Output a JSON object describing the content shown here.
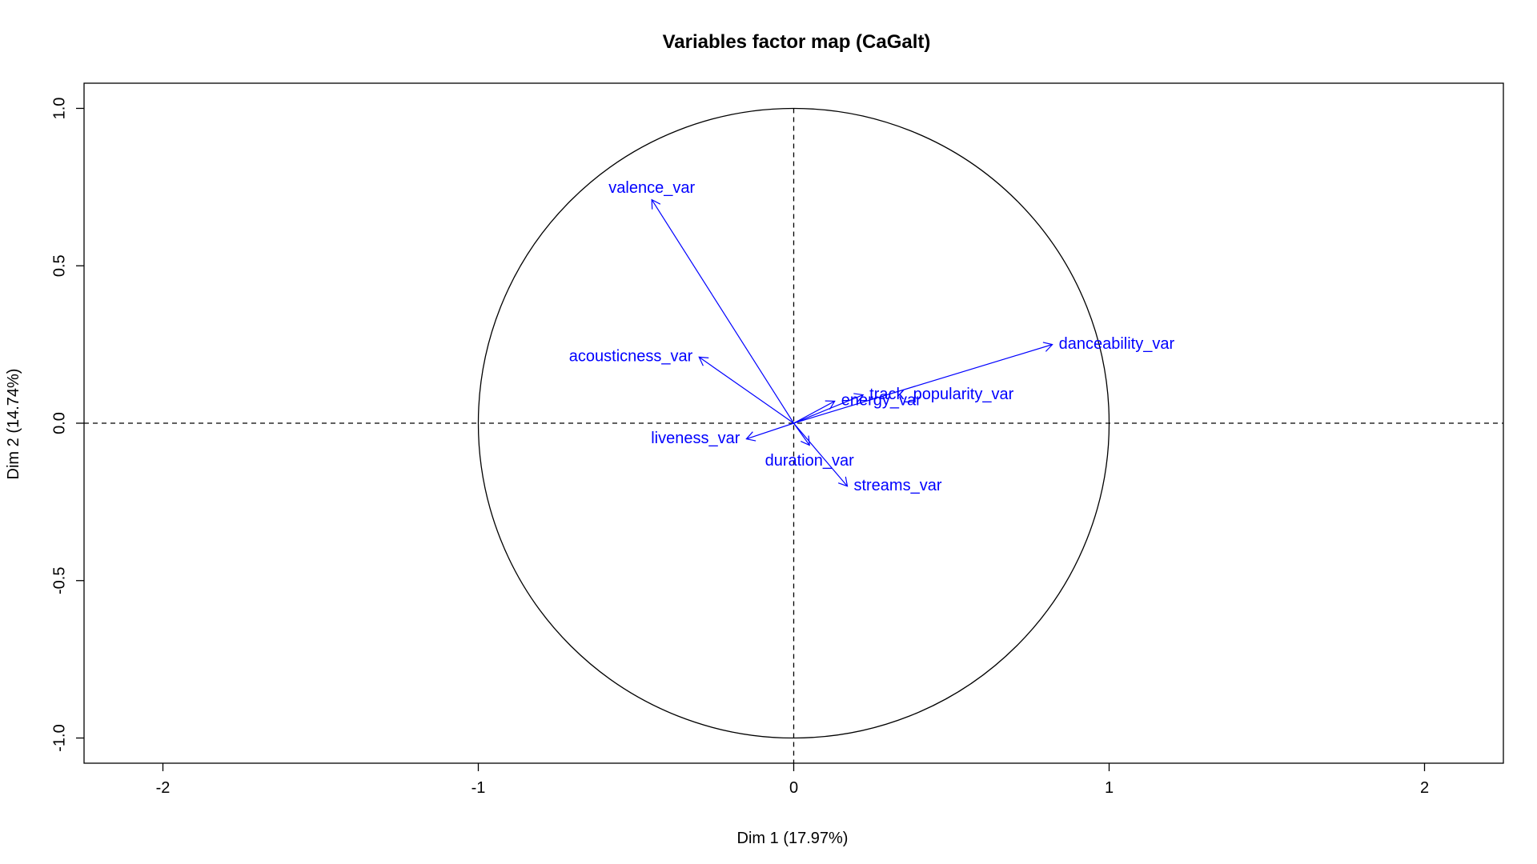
{
  "chart_data": {
    "type": "scatter",
    "title": "Variables factor map (CaGalt)",
    "xlabel": "Dim 1 (17.97%)",
    "ylabel": "Dim 2 (14.74%)",
    "xlim": [
      -2.25,
      2.25
    ],
    "ylim": [
      -1.08,
      1.08
    ],
    "x_ticks": [
      -2,
      -1,
      0,
      1,
      2
    ],
    "x_tick_labels": [
      "-2",
      "-1",
      "0",
      "1",
      "2"
    ],
    "y_ticks": [
      -1.0,
      -0.5,
      0.0,
      0.5,
      1.0
    ],
    "y_tick_labels": [
      "-1.0",
      "-0.5",
      "0.0",
      "0.5",
      "1.0"
    ],
    "grid": false,
    "unit_circle": true,
    "reference_lines": {
      "x": 0,
      "y": 0,
      "style": "dashed"
    },
    "arrow_color": "#0000ff",
    "variables": [
      {
        "name": "valence_var",
        "x": -0.45,
        "y": 0.71
      },
      {
        "name": "danceability_var",
        "x": 0.82,
        "y": 0.25
      },
      {
        "name": "acousticness_var",
        "x": -0.3,
        "y": 0.21
      },
      {
        "name": "track_popularity_var",
        "x": 0.22,
        "y": 0.09
      },
      {
        "name": "energy_var",
        "x": 0.13,
        "y": 0.07
      },
      {
        "name": "liveness_var",
        "x": -0.15,
        "y": -0.05
      },
      {
        "name": "duration_var",
        "x": 0.05,
        "y": -0.07
      },
      {
        "name": "streams_var",
        "x": 0.17,
        "y": -0.2
      }
    ]
  }
}
